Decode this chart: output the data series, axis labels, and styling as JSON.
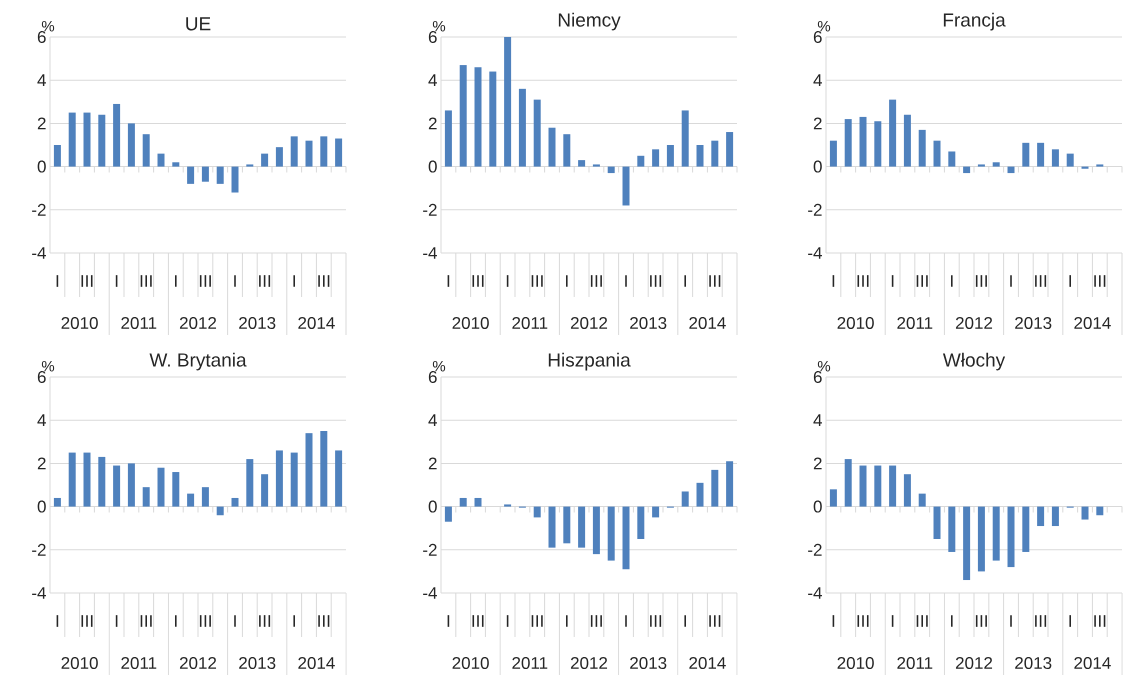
{
  "chart_data": [
    {
      "type": "bar",
      "title": "UE",
      "ylabel": "%",
      "categories": [
        "I",
        null,
        "III",
        null,
        "I",
        null,
        "III",
        null,
        "I",
        null,
        "III",
        null,
        "I",
        null,
        "III",
        null,
        "I",
        null,
        "III",
        null
      ],
      "annotations": [
        "2010",
        "2011",
        "2012",
        "2013",
        "2014"
      ],
      "values": [
        1.0,
        2.5,
        2.5,
        2.4,
        2.9,
        2.0,
        1.5,
        0.6,
        0.2,
        -0.8,
        -0.7,
        -0.8,
        -1.2,
        0.1,
        0.6,
        0.9,
        1.4,
        1.2,
        1.4,
        1.3
      ],
      "color": "#4f81bd",
      "ylim": [
        -4,
        6
      ],
      "yticks": [
        -4,
        -2,
        0,
        2,
        4,
        6
      ],
      "grid": "y"
    },
    {
      "type": "bar",
      "title": "Niemcy",
      "ylabel": "%",
      "categories": [
        "I",
        null,
        "III",
        null,
        "I",
        null,
        "III",
        null,
        "I",
        null,
        "III",
        null,
        "I",
        null,
        "III",
        null,
        "I",
        null,
        "III",
        null
      ],
      "annotations": [
        "2010",
        "2011",
        "2012",
        "2013",
        "2014"
      ],
      "values": [
        2.6,
        4.7,
        4.6,
        4.4,
        6.0,
        3.6,
        3.1,
        1.8,
        1.5,
        0.3,
        0.1,
        -0.3,
        -1.8,
        0.5,
        0.8,
        1.0,
        2.6,
        1.0,
        1.2,
        1.6
      ],
      "color": "#4f81bd",
      "ylim": [
        -4,
        6
      ],
      "yticks": [
        -4,
        -2,
        0,
        2,
        4,
        6
      ],
      "grid": "y"
    },
    {
      "type": "bar",
      "title": "Francja",
      "ylabel": "%",
      "categories": [
        "I",
        null,
        "III",
        null,
        "I",
        null,
        "III",
        null,
        "I",
        null,
        "III",
        null,
        "I",
        null,
        "III",
        null,
        "I",
        null,
        "III",
        null
      ],
      "annotations": [
        "2010",
        "2011",
        "2012",
        "2013",
        "2014"
      ],
      "values": [
        1.2,
        2.2,
        2.3,
        2.1,
        3.1,
        2.4,
        1.7,
        1.2,
        0.7,
        -0.3,
        0.1,
        0.2,
        -0.3,
        1.1,
        1.1,
        0.8,
        0.6,
        -0.1,
        0.1,
        null
      ],
      "color": "#4f81bd",
      "ylim": [
        -4,
        6
      ],
      "yticks": [
        -4,
        -2,
        0,
        2,
        4,
        6
      ],
      "grid": "y"
    },
    {
      "type": "bar",
      "title": "W. Brytania",
      "ylabel": "%",
      "categories": [
        "I",
        null,
        "III",
        null,
        "I",
        null,
        "III",
        null,
        "I",
        null,
        "III",
        null,
        "I",
        null,
        "III",
        null,
        "I",
        null,
        "III",
        null
      ],
      "annotations": [
        "2010",
        "2011",
        "2012",
        "2013",
        "2014"
      ],
      "values": [
        0.4,
        2.5,
        2.5,
        2.3,
        1.9,
        2.0,
        0.9,
        1.8,
        1.6,
        0.6,
        0.9,
        -0.4,
        0.4,
        2.2,
        1.5,
        2.6,
        2.5,
        3.4,
        3.5,
        2.6
      ],
      "color": "#4f81bd",
      "ylim": [
        -4,
        6
      ],
      "yticks": [
        -4,
        -2,
        0,
        2,
        4,
        6
      ],
      "grid": "y"
    },
    {
      "type": "bar",
      "title": "Hiszpania",
      "ylabel": "%",
      "categories": [
        "I",
        null,
        "III",
        null,
        "I",
        null,
        "III",
        null,
        "I",
        null,
        "III",
        null,
        "I",
        null,
        "III",
        null,
        "I",
        null,
        "III",
        null
      ],
      "annotations": [
        "2010",
        "2011",
        "2012",
        "2013",
        "2014"
      ],
      "values": [
        -0.7,
        0.4,
        0.4,
        0.0,
        0.1,
        -0.05,
        -0.5,
        -1.9,
        -1.7,
        -1.9,
        -2.2,
        -2.5,
        -2.9,
        -1.5,
        -0.5,
        -0.05,
        0.7,
        1.1,
        1.7,
        2.1
      ],
      "color": "#4f81bd",
      "ylim": [
        -4,
        6
      ],
      "yticks": [
        -4,
        -2,
        0,
        2,
        4,
        6
      ],
      "grid": "y"
    },
    {
      "type": "bar",
      "title": "Włochy",
      "ylabel": "%",
      "categories": [
        "I",
        null,
        "III",
        null,
        "I",
        null,
        "III",
        null,
        "I",
        null,
        "III",
        null,
        "I",
        null,
        "III",
        null,
        "I",
        null,
        "III",
        null
      ],
      "annotations": [
        "2010",
        "2011",
        "2012",
        "2013",
        "2014"
      ],
      "values": [
        0.8,
        2.2,
        1.9,
        1.9,
        1.9,
        1.5,
        0.6,
        -1.5,
        -2.1,
        -3.4,
        -3.0,
        -2.5,
        -2.8,
        -2.1,
        -0.9,
        -0.9,
        -0.05,
        -0.6,
        -0.4,
        null
      ],
      "color": "#4f81bd",
      "ylim": [
        -4,
        6
      ],
      "yticks": [
        -4,
        -2,
        0,
        2,
        4,
        6
      ],
      "grid": "y"
    }
  ]
}
